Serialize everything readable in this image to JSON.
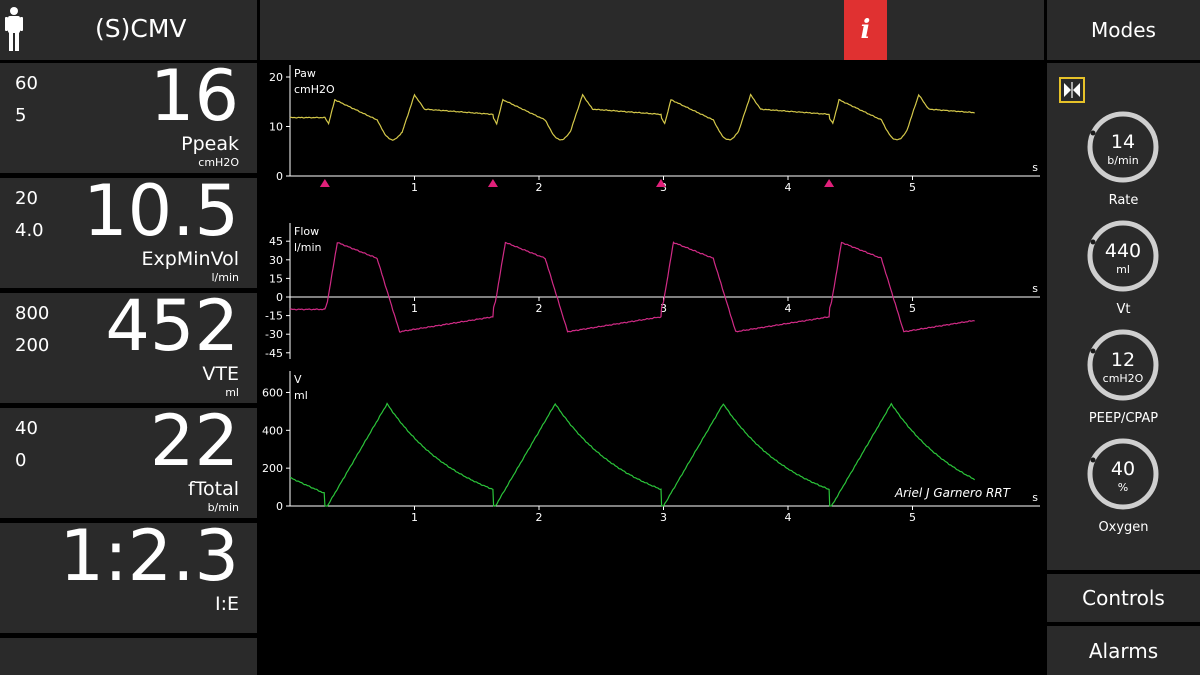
{
  "header": {
    "mode": "(S)CMV",
    "info_label": "i",
    "modes_label": "Modes"
  },
  "params": [
    {
      "high": "60",
      "low": "5",
      "value": "16",
      "name": "Ppeak",
      "unit": "cmH2O"
    },
    {
      "high": "20",
      "low": "4.0",
      "value": "10.5",
      "name": "ExpMinVol",
      "unit": "l/min"
    },
    {
      "high": "800",
      "low": "200",
      "value": "452",
      "name": "VTE",
      "unit": "ml"
    },
    {
      "high": "40",
      "low": "0",
      "value": "22",
      "name": "fTotal",
      "unit": "b/min"
    },
    {
      "high": "",
      "low": "",
      "value": "1:2.3",
      "name": "I:E",
      "unit": ""
    }
  ],
  "controls": [
    {
      "value": "14",
      "unit": "b/min",
      "label": "Rate"
    },
    {
      "value": "440",
      "unit": "ml",
      "label": "Vt"
    },
    {
      "value": "12",
      "unit": "cmH2O",
      "label": "PEEP/CPAP"
    },
    {
      "value": "40",
      "unit": "%",
      "label": "Oxygen"
    }
  ],
  "buttons": {
    "controls": "Controls",
    "alarms": "Alarms"
  },
  "watermark": "Ariel J Garnero RRT",
  "colors": {
    "paw": "#d4c84a",
    "flow": "#d12b86",
    "volume": "#2bc43a",
    "alert": "#e03131",
    "trigger": "#e0207a"
  },
  "chart_data": [
    {
      "type": "line",
      "title": "Paw",
      "ylabel": "cmH2O",
      "xlabel": "s",
      "yticks": [
        "20",
        "10",
        "0"
      ],
      "xticks": [
        "1",
        "2",
        "3",
        "4",
        "5"
      ],
      "ylim": [
        0,
        20
      ],
      "xlim": [
        0,
        6
      ],
      "trigger_markers_x": [
        0.28,
        1.63,
        2.98,
        4.33
      ]
    },
    {
      "type": "line",
      "title": "Flow",
      "ylabel": "l/min",
      "xlabel": "s",
      "yticks": [
        "45",
        "30",
        "15",
        "0",
        "-15",
        "-30",
        "-45"
      ],
      "xticks": [
        "1",
        "2",
        "3",
        "4",
        "5"
      ],
      "ylim": [
        -50,
        50
      ],
      "xlim": [
        0,
        6
      ]
    },
    {
      "type": "line",
      "title": "V",
      "ylabel": "ml",
      "xlabel": "s",
      "yticks": [
        "600",
        "400",
        "200",
        "0"
      ],
      "xticks": [
        "1",
        "2",
        "3",
        "4",
        "5"
      ],
      "ylim": [
        0,
        650
      ],
      "xlim": [
        0,
        6
      ]
    }
  ]
}
